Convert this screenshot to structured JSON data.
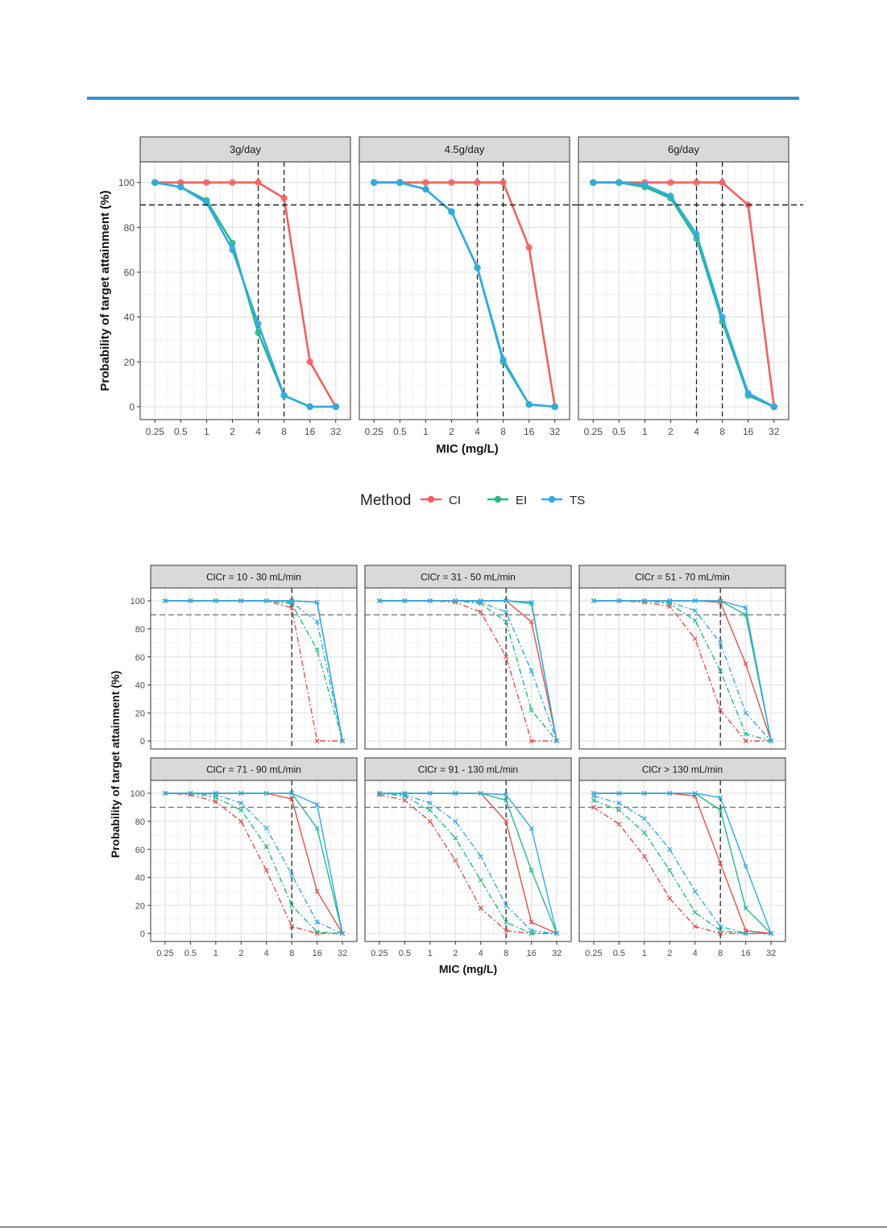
{
  "page": {
    "rule_color": "#3a8fcd"
  },
  "chart_data": [
    {
      "type": "line",
      "facet_by": "dose",
      "panels": [
        "3g/day",
        "4.5g/day",
        "6g/day"
      ],
      "x": [
        "0.25",
        "0.5",
        "1",
        "2",
        "4",
        "8",
        "16",
        "32"
      ],
      "xlabel": "MIC (mg/L)",
      "ylabel": "Probability of target attainment (%)",
      "ylim": [
        0,
        100
      ],
      "yticks": [
        0,
        20,
        40,
        60,
        80,
        100
      ],
      "threshold": 90,
      "vlines": [
        [
          4,
          8
        ],
        [
          4,
          8
        ],
        [
          4,
          8
        ]
      ],
      "grid": true,
      "legend": {
        "title": "Method",
        "placement": "bottom",
        "entries": [
          {
            "label": "CI",
            "color": "#f0625f"
          },
          {
            "label": "EI",
            "color": "#26b88a"
          },
          {
            "label": "TS",
            "color": "#33a9e2"
          }
        ]
      },
      "series": [
        [
          {
            "label": "CI",
            "color": "#f0625f",
            "values": [
              100,
              100,
              100,
              100,
              100,
              93,
              20,
              0
            ]
          },
          {
            "label": "EI",
            "color": "#26b88a",
            "values": [
              100,
              98,
              92,
              73,
              33,
              5,
              0,
              0
            ]
          },
          {
            "label": "TS",
            "color": "#33a9e2",
            "values": [
              100,
              98,
              91,
              70,
              37,
              5,
              0,
              0
            ]
          }
        ],
        [
          {
            "label": "CI",
            "color": "#f0625f",
            "values": [
              100,
              100,
              100,
              100,
              100,
              100,
              71,
              0
            ]
          },
          {
            "label": "EI",
            "color": "#26b88a",
            "values": [
              100,
              100,
              97,
              87,
              62,
              20,
              1,
              0
            ]
          },
          {
            "label": "TS",
            "color": "#33a9e2",
            "values": [
              100,
              100,
              97,
              87,
              62,
              21,
              1,
              0
            ]
          }
        ],
        [
          {
            "label": "CI",
            "color": "#f0625f",
            "values": [
              100,
              100,
              100,
              100,
              100,
              100,
              90,
              0
            ]
          },
          {
            "label": "EI",
            "color": "#26b88a",
            "values": [
              100,
              100,
              98,
              93,
              75,
              38,
              5,
              0
            ]
          },
          {
            "label": "TS",
            "color": "#33a9e2",
            "values": [
              100,
              100,
              99,
              94,
              77,
              40,
              6,
              0
            ]
          }
        ]
      ]
    },
    {
      "type": "line",
      "facet_by": "creatinine clearance",
      "panels": [
        "ClCr = 10 - 30 mL/min",
        "ClCr = 31 - 50 mL/min",
        "ClCr = 51 - 70 mL/min",
        "ClCr = 71 - 90 mL/min",
        "ClCr = 91 - 130 mL/min",
        "ClCr > 130 mL/min"
      ],
      "x": [
        "0.25",
        "0.5",
        "1",
        "2",
        "4",
        "8",
        "16",
        "32"
      ],
      "xlabel": "MIC (mg/L)",
      "ylabel": "Probability of target attainment (%)",
      "ylim": [
        0,
        100
      ],
      "yticks": [
        0,
        20,
        40,
        60,
        80,
        100
      ],
      "threshold": 90,
      "vline": 8,
      "grid": true,
      "series": [
        [
          {
            "color": "#d9534f",
            "dash": "dashdot",
            "values": [
              100,
              100,
              100,
              100,
              100,
              95,
              0,
              0
            ]
          },
          {
            "color": "#26b88a",
            "dash": "dashdot",
            "values": [
              100,
              100,
              100,
              100,
              100,
              98,
              65,
              0
            ]
          },
          {
            "color": "#33a9e2",
            "dash": "dashdot",
            "values": [
              100,
              100,
              100,
              100,
              100,
              99,
              85,
              0
            ]
          },
          {
            "color": "#d9534f",
            "dash": "solid",
            "values": [
              100,
              100,
              100,
              100,
              100,
              100,
              99,
              0
            ]
          },
          {
            "color": "#26b88a",
            "dash": "solid",
            "values": [
              100,
              100,
              100,
              100,
              100,
              100,
              99,
              0
            ]
          },
          {
            "color": "#33a9e2",
            "dash": "solid",
            "values": [
              100,
              100,
              100,
              100,
              100,
              100,
              99,
              0
            ]
          }
        ],
        [
          {
            "color": "#d9534f",
            "dash": "dashdot",
            "values": [
              100,
              100,
              100,
              99,
              92,
              60,
              0,
              0
            ]
          },
          {
            "color": "#26b88a",
            "dash": "dashdot",
            "values": [
              100,
              100,
              100,
              100,
              98,
              85,
              22,
              0
            ]
          },
          {
            "color": "#33a9e2",
            "dash": "dashdot",
            "values": [
              100,
              100,
              100,
              100,
              99,
              92,
              50,
              0
            ]
          },
          {
            "color": "#d9534f",
            "dash": "solid",
            "values": [
              100,
              100,
              100,
              100,
              100,
              100,
              85,
              0
            ]
          },
          {
            "color": "#26b88a",
            "dash": "solid",
            "values": [
              100,
              100,
              100,
              100,
              100,
              100,
              98,
              0
            ]
          },
          {
            "color": "#33a9e2",
            "dash": "solid",
            "values": [
              100,
              100,
              100,
              100,
              100,
              100,
              99,
              0
            ]
          }
        ],
        [
          {
            "color": "#d9534f",
            "dash": "dashdot",
            "values": [
              100,
              100,
              99,
              96,
              73,
              22,
              0,
              0
            ]
          },
          {
            "color": "#26b88a",
            "dash": "dashdot",
            "values": [
              100,
              100,
              100,
              98,
              86,
              50,
              5,
              0
            ]
          },
          {
            "color": "#33a9e2",
            "dash": "dashdot",
            "values": [
              100,
              100,
              100,
              99,
              93,
              70,
              20,
              0
            ]
          },
          {
            "color": "#d9534f",
            "dash": "solid",
            "values": [
              100,
              100,
              100,
              100,
              100,
              99,
              55,
              0
            ]
          },
          {
            "color": "#26b88a",
            "dash": "solid",
            "values": [
              100,
              100,
              100,
              100,
              100,
              100,
              90,
              0
            ]
          },
          {
            "color": "#33a9e2",
            "dash": "solid",
            "values": [
              100,
              100,
              100,
              100,
              100,
              100,
              95,
              0
            ]
          }
        ],
        [
          {
            "color": "#d9534f",
            "dash": "dashdot",
            "values": [
              100,
              99,
              94,
              80,
              45,
              5,
              0,
              0
            ]
          },
          {
            "color": "#26b88a",
            "dash": "dashdot",
            "values": [
              100,
              100,
              97,
              88,
              62,
              20,
              1,
              0
            ]
          },
          {
            "color": "#33a9e2",
            "dash": "dashdot",
            "values": [
              100,
              100,
              99,
              93,
              75,
              42,
              8,
              0
            ]
          },
          {
            "color": "#d9534f",
            "dash": "solid",
            "values": [
              100,
              100,
              100,
              100,
              100,
              96,
              30,
              0
            ]
          },
          {
            "color": "#26b88a",
            "dash": "solid",
            "values": [
              100,
              100,
              100,
              100,
              100,
              100,
              75,
              0
            ]
          },
          {
            "color": "#33a9e2",
            "dash": "solid",
            "values": [
              100,
              100,
              100,
              100,
              100,
              100,
              92,
              0
            ]
          }
        ],
        [
          {
            "color": "#d9534f",
            "dash": "dashdot",
            "values": [
              99,
              95,
              80,
              52,
              18,
              2,
              0,
              0
            ]
          },
          {
            "color": "#26b88a",
            "dash": "dashdot",
            "values": [
              100,
              98,
              88,
              68,
              38,
              8,
              0,
              0
            ]
          },
          {
            "color": "#33a9e2",
            "dash": "dashdot",
            "values": [
              100,
              99,
              93,
              80,
              55,
              20,
              2,
              0
            ]
          },
          {
            "color": "#d9534f",
            "dash": "solid",
            "values": [
              100,
              100,
              100,
              100,
              100,
              80,
              8,
              0
            ]
          },
          {
            "color": "#26b88a",
            "dash": "solid",
            "values": [
              100,
              100,
              100,
              100,
              100,
              95,
              45,
              0
            ]
          },
          {
            "color": "#33a9e2",
            "dash": "solid",
            "values": [
              100,
              100,
              100,
              100,
              100,
              99,
              75,
              0
            ]
          }
        ],
        [
          {
            "color": "#d9534f",
            "dash": "dashdot",
            "values": [
              90,
              78,
              55,
              25,
              5,
              0,
              0,
              0
            ]
          },
          {
            "color": "#26b88a",
            "dash": "dashdot",
            "values": [
              95,
              88,
              72,
              45,
              15,
              2,
              0,
              0
            ]
          },
          {
            "color": "#33a9e2",
            "dash": "dashdot",
            "values": [
              98,
              93,
              82,
              60,
              30,
              5,
              0,
              0
            ]
          },
          {
            "color": "#d9534f",
            "dash": "solid",
            "values": [
              100,
              100,
              100,
              100,
              98,
              50,
              2,
              0
            ]
          },
          {
            "color": "#26b88a",
            "dash": "solid",
            "values": [
              100,
              100,
              100,
              100,
              100,
              88,
              18,
              0
            ]
          },
          {
            "color": "#33a9e2",
            "dash": "solid",
            "values": [
              100,
              100,
              100,
              100,
              100,
              97,
              48,
              0
            ]
          }
        ]
      ]
    }
  ]
}
